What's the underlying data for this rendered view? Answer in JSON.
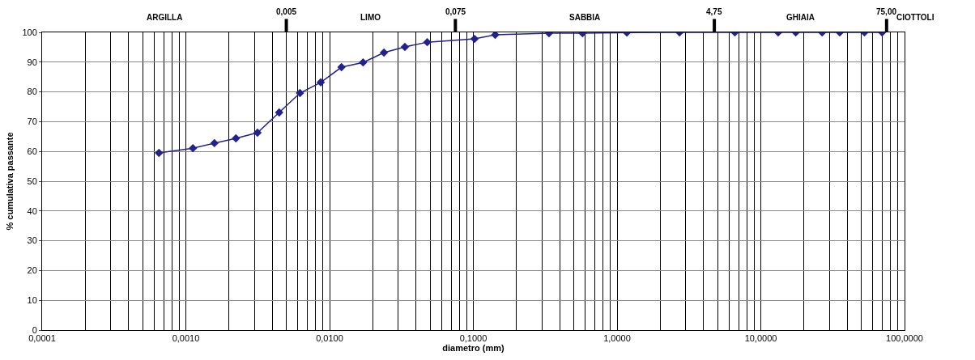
{
  "chart_data": {
    "type": "line",
    "xlabel": "diametro (mm)",
    "ylabel": "% cumulativa passante",
    "log": "x",
    "grid": true,
    "marker": "diamond",
    "line_style": "solid",
    "xlim": [
      0.0001,
      100
    ],
    "ylim": [
      0,
      100
    ],
    "xticks": [
      {
        "value": 0.0001,
        "label": "0,0001"
      },
      {
        "value": 0.001,
        "label": "0,0010"
      },
      {
        "value": 0.01,
        "label": "0,0100"
      },
      {
        "value": 0.1,
        "label": "0,1000"
      },
      {
        "value": 1,
        "label": "1,0000"
      },
      {
        "value": 10,
        "label": "10,0000"
      },
      {
        "value": 100,
        "label": "100,0000"
      }
    ],
    "yticks": [
      0,
      10,
      20,
      30,
      40,
      50,
      60,
      70,
      80,
      90,
      100
    ],
    "x": [
      0.00065,
      0.00112,
      0.00158,
      0.00223,
      0.00315,
      0.00446,
      0.00622,
      0.00868,
      0.0121,
      0.0171,
      0.0239,
      0.0334,
      0.0478,
      0.102,
      0.142,
      0.336,
      0.575,
      1.17,
      2.72,
      6.6,
      13.2,
      17.5,
      26.7,
      35.4,
      52.6,
      69.8
    ],
    "series": [
      {
        "color": "#22228f",
        "values": [
          59.5,
          61.1,
          62.8,
          64.4,
          66.3,
          73.1,
          79.6,
          83.2,
          88.3,
          89.9,
          93.2,
          95.1,
          96.7,
          97.8,
          99.2,
          99.7,
          99.7,
          99.9,
          100,
          100,
          100,
          100,
          100,
          100,
          100,
          100
        ]
      }
    ],
    "ref_lines": [
      {
        "axis": "x",
        "value": 0.005,
        "label": "0,005"
      },
      {
        "axis": "x",
        "value": 0.075,
        "label": "0,075"
      },
      {
        "axis": "x",
        "value": 4.75,
        "label": "4,75"
      },
      {
        "axis": "x",
        "value": 75,
        "label": "75,00"
      }
    ],
    "annotations": [
      "ARGILLA",
      "LIMO",
      "SABBIA",
      "GHIAIA",
      "CIOTTOLI"
    ]
  }
}
